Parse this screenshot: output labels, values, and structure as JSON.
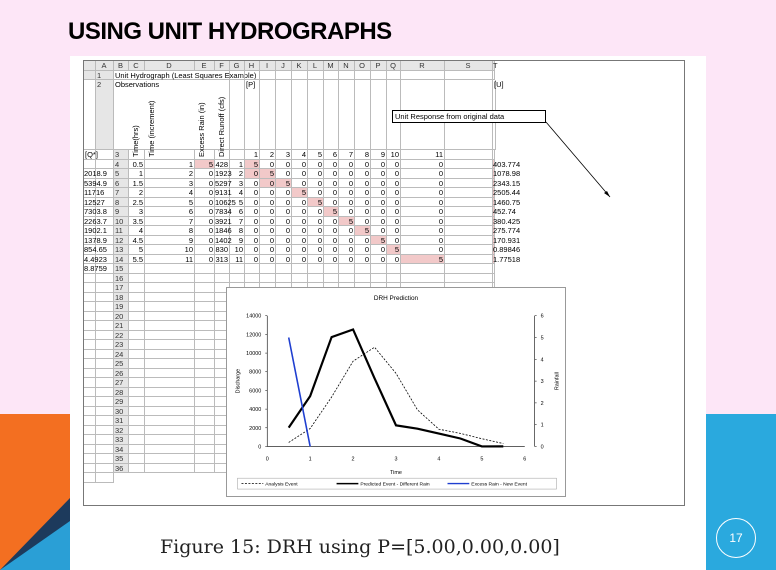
{
  "slide": {
    "title": "USING UNIT HYDROGRAPHS",
    "caption": "Figure 15: DRH using P=[5.00,0.00,0.00]",
    "page_number": "17"
  },
  "sheet": {
    "columns": [
      "",
      "A",
      "B",
      "C",
      "D",
      "E",
      "F",
      "G",
      "H",
      "I",
      "J",
      "K",
      "L",
      "M",
      "N",
      "O",
      "P",
      "Q",
      "R",
      "S",
      "T"
    ],
    "row_numbers": [
      "1",
      "2",
      "3",
      "4",
      "5",
      "6",
      "7",
      "8",
      "9",
      "10",
      "11",
      "12",
      "13",
      "14",
      "15",
      "16",
      "17",
      "18",
      "19",
      "20",
      "21",
      "22",
      "23",
      "24",
      "25",
      "26",
      "27",
      "28",
      "29",
      "30",
      "31",
      "32",
      "33",
      "34",
      "35",
      "36"
    ],
    "title_cell": "Unit Hydrograph (Least Squares Example)",
    "observations_cell": "Observations",
    "p_label": "[P]",
    "u_label": "[U]",
    "q_label": "[Q*]",
    "vertical_headers": [
      "Time(hrs)",
      "Time (increment)",
      "Excess Rain (in)",
      "Direct Runoff (cfs)"
    ],
    "matrix_header": [
      "1",
      "2",
      "3",
      "4",
      "5",
      "6",
      "7",
      "8",
      "9",
      "10",
      "11"
    ],
    "callout": "Unit Response from original data",
    "rows": [
      {
        "a": "0.5",
        "b": "1",
        "c": "5",
        "d": "428",
        "f": "1",
        "m": [
          "5",
          "0",
          "0",
          "0",
          "0",
          "0",
          "0",
          "0",
          "0",
          "0",
          "0"
        ],
        "s": "403.774",
        "t": "2018.9"
      },
      {
        "a": "1",
        "b": "2",
        "c": "0",
        "d": "1923",
        "f": "2",
        "m": [
          "0",
          "5",
          "0",
          "0",
          "0",
          "0",
          "0",
          "0",
          "0",
          "0",
          "0"
        ],
        "s": "1078.98",
        "t": "5394.9"
      },
      {
        "a": "1.5",
        "b": "3",
        "c": "0",
        "d": "5297",
        "f": "3",
        "m": [
          "0",
          "0",
          "5",
          "0",
          "0",
          "0",
          "0",
          "0",
          "0",
          "0",
          "0"
        ],
        "s": "2343.15",
        "t": "11716"
      },
      {
        "a": "2",
        "b": "4",
        "c": "0",
        "d": "9131",
        "f": "4",
        "m": [
          "0",
          "0",
          "0",
          "5",
          "0",
          "0",
          "0",
          "0",
          "0",
          "0",
          "0"
        ],
        "s": "2505.44",
        "t": "12527"
      },
      {
        "a": "2.5",
        "b": "5",
        "c": "0",
        "d": "10625",
        "f": "5",
        "m": [
          "0",
          "0",
          "0",
          "0",
          "5",
          "0",
          "0",
          "0",
          "0",
          "0",
          "0"
        ],
        "s": "1460.75",
        "t": "7303.8"
      },
      {
        "a": "3",
        "b": "6",
        "c": "0",
        "d": "7834",
        "f": "6",
        "m": [
          "0",
          "0",
          "0",
          "0",
          "0",
          "5",
          "0",
          "0",
          "0",
          "0",
          "0"
        ],
        "s": "452.74",
        "t": "2263.7"
      },
      {
        "a": "3.5",
        "b": "7",
        "c": "0",
        "d": "3921",
        "f": "7",
        "m": [
          "0",
          "0",
          "0",
          "0",
          "0",
          "0",
          "5",
          "0",
          "0",
          "0",
          "0"
        ],
        "s": "380.425",
        "t": "1902.1"
      },
      {
        "a": "4",
        "b": "8",
        "c": "0",
        "d": "1846",
        "f": "8",
        "m": [
          "0",
          "0",
          "0",
          "0",
          "0",
          "0",
          "0",
          "5",
          "0",
          "0",
          "0"
        ],
        "s": "275.774",
        "t": "1378.9"
      },
      {
        "a": "4.5",
        "b": "9",
        "c": "0",
        "d": "1402",
        "f": "9",
        "m": [
          "0",
          "0",
          "0",
          "0",
          "0",
          "0",
          "0",
          "0",
          "5",
          "0",
          "0"
        ],
        "s": "170.931",
        "t": "854.65"
      },
      {
        "a": "5",
        "b": "10",
        "c": "0",
        "d": "830",
        "f": "10",
        "m": [
          "0",
          "0",
          "0",
          "0",
          "0",
          "0",
          "0",
          "0",
          "0",
          "5",
          "0"
        ],
        "s": "0.89846",
        "t": "4.4923"
      },
      {
        "a": "5.5",
        "b": "11",
        "c": "0",
        "d": "313",
        "f": "11",
        "m": [
          "0",
          "0",
          "0",
          "0",
          "0",
          "0",
          "0",
          "0",
          "0",
          "0",
          "5"
        ],
        "s": "1.77518",
        "t": "8.8759"
      }
    ]
  },
  "chart_data": {
    "type": "line",
    "title": "DRH Prediction",
    "xlabel": "Time",
    "ylabel": "Discharge",
    "y2label": "Rainfall",
    "xlim": [
      0,
      6
    ],
    "ylim": [
      0,
      14000
    ],
    "y2lim": [
      0,
      6
    ],
    "xticks": [
      "0",
      "1",
      "2",
      "3",
      "4",
      "5",
      "6"
    ],
    "yticks": [
      "0",
      "2000",
      "4000",
      "6000",
      "8000",
      "10000",
      "12000",
      "14000"
    ],
    "y2ticks": [
      "0",
      "1",
      "2",
      "3",
      "4",
      "5",
      "6"
    ],
    "legend_position": "bottom",
    "series": [
      {
        "name": "Analysis Event",
        "style": "dashed",
        "color": "#000000",
        "axis": "left",
        "x": [
          0.5,
          1,
          1.5,
          2,
          2.5,
          3,
          3.5,
          4,
          4.5,
          5,
          5.5
        ],
        "y": [
          428,
          1923,
          5297,
          9131,
          10625,
          7834,
          3921,
          1846,
          1402,
          830,
          313
        ]
      },
      {
        "name": "Predicted Event - Different Rain",
        "style": "solid-thick",
        "color": "#000000",
        "axis": "left",
        "x": [
          0.5,
          1,
          1.5,
          2,
          2.5,
          3,
          3.5,
          4,
          4.5,
          5,
          5.5
        ],
        "y": [
          2018.9,
          5394.9,
          11716,
          12527,
          7303.8,
          2263.7,
          1902.1,
          1378.9,
          854.65,
          4.4923,
          8.8759
        ]
      },
      {
        "name": "Excess Rain - New Event",
        "style": "solid",
        "color": "#1f3fd0",
        "axis": "right",
        "x": [
          0.5,
          1
        ],
        "y": [
          5,
          0
        ]
      }
    ]
  }
}
